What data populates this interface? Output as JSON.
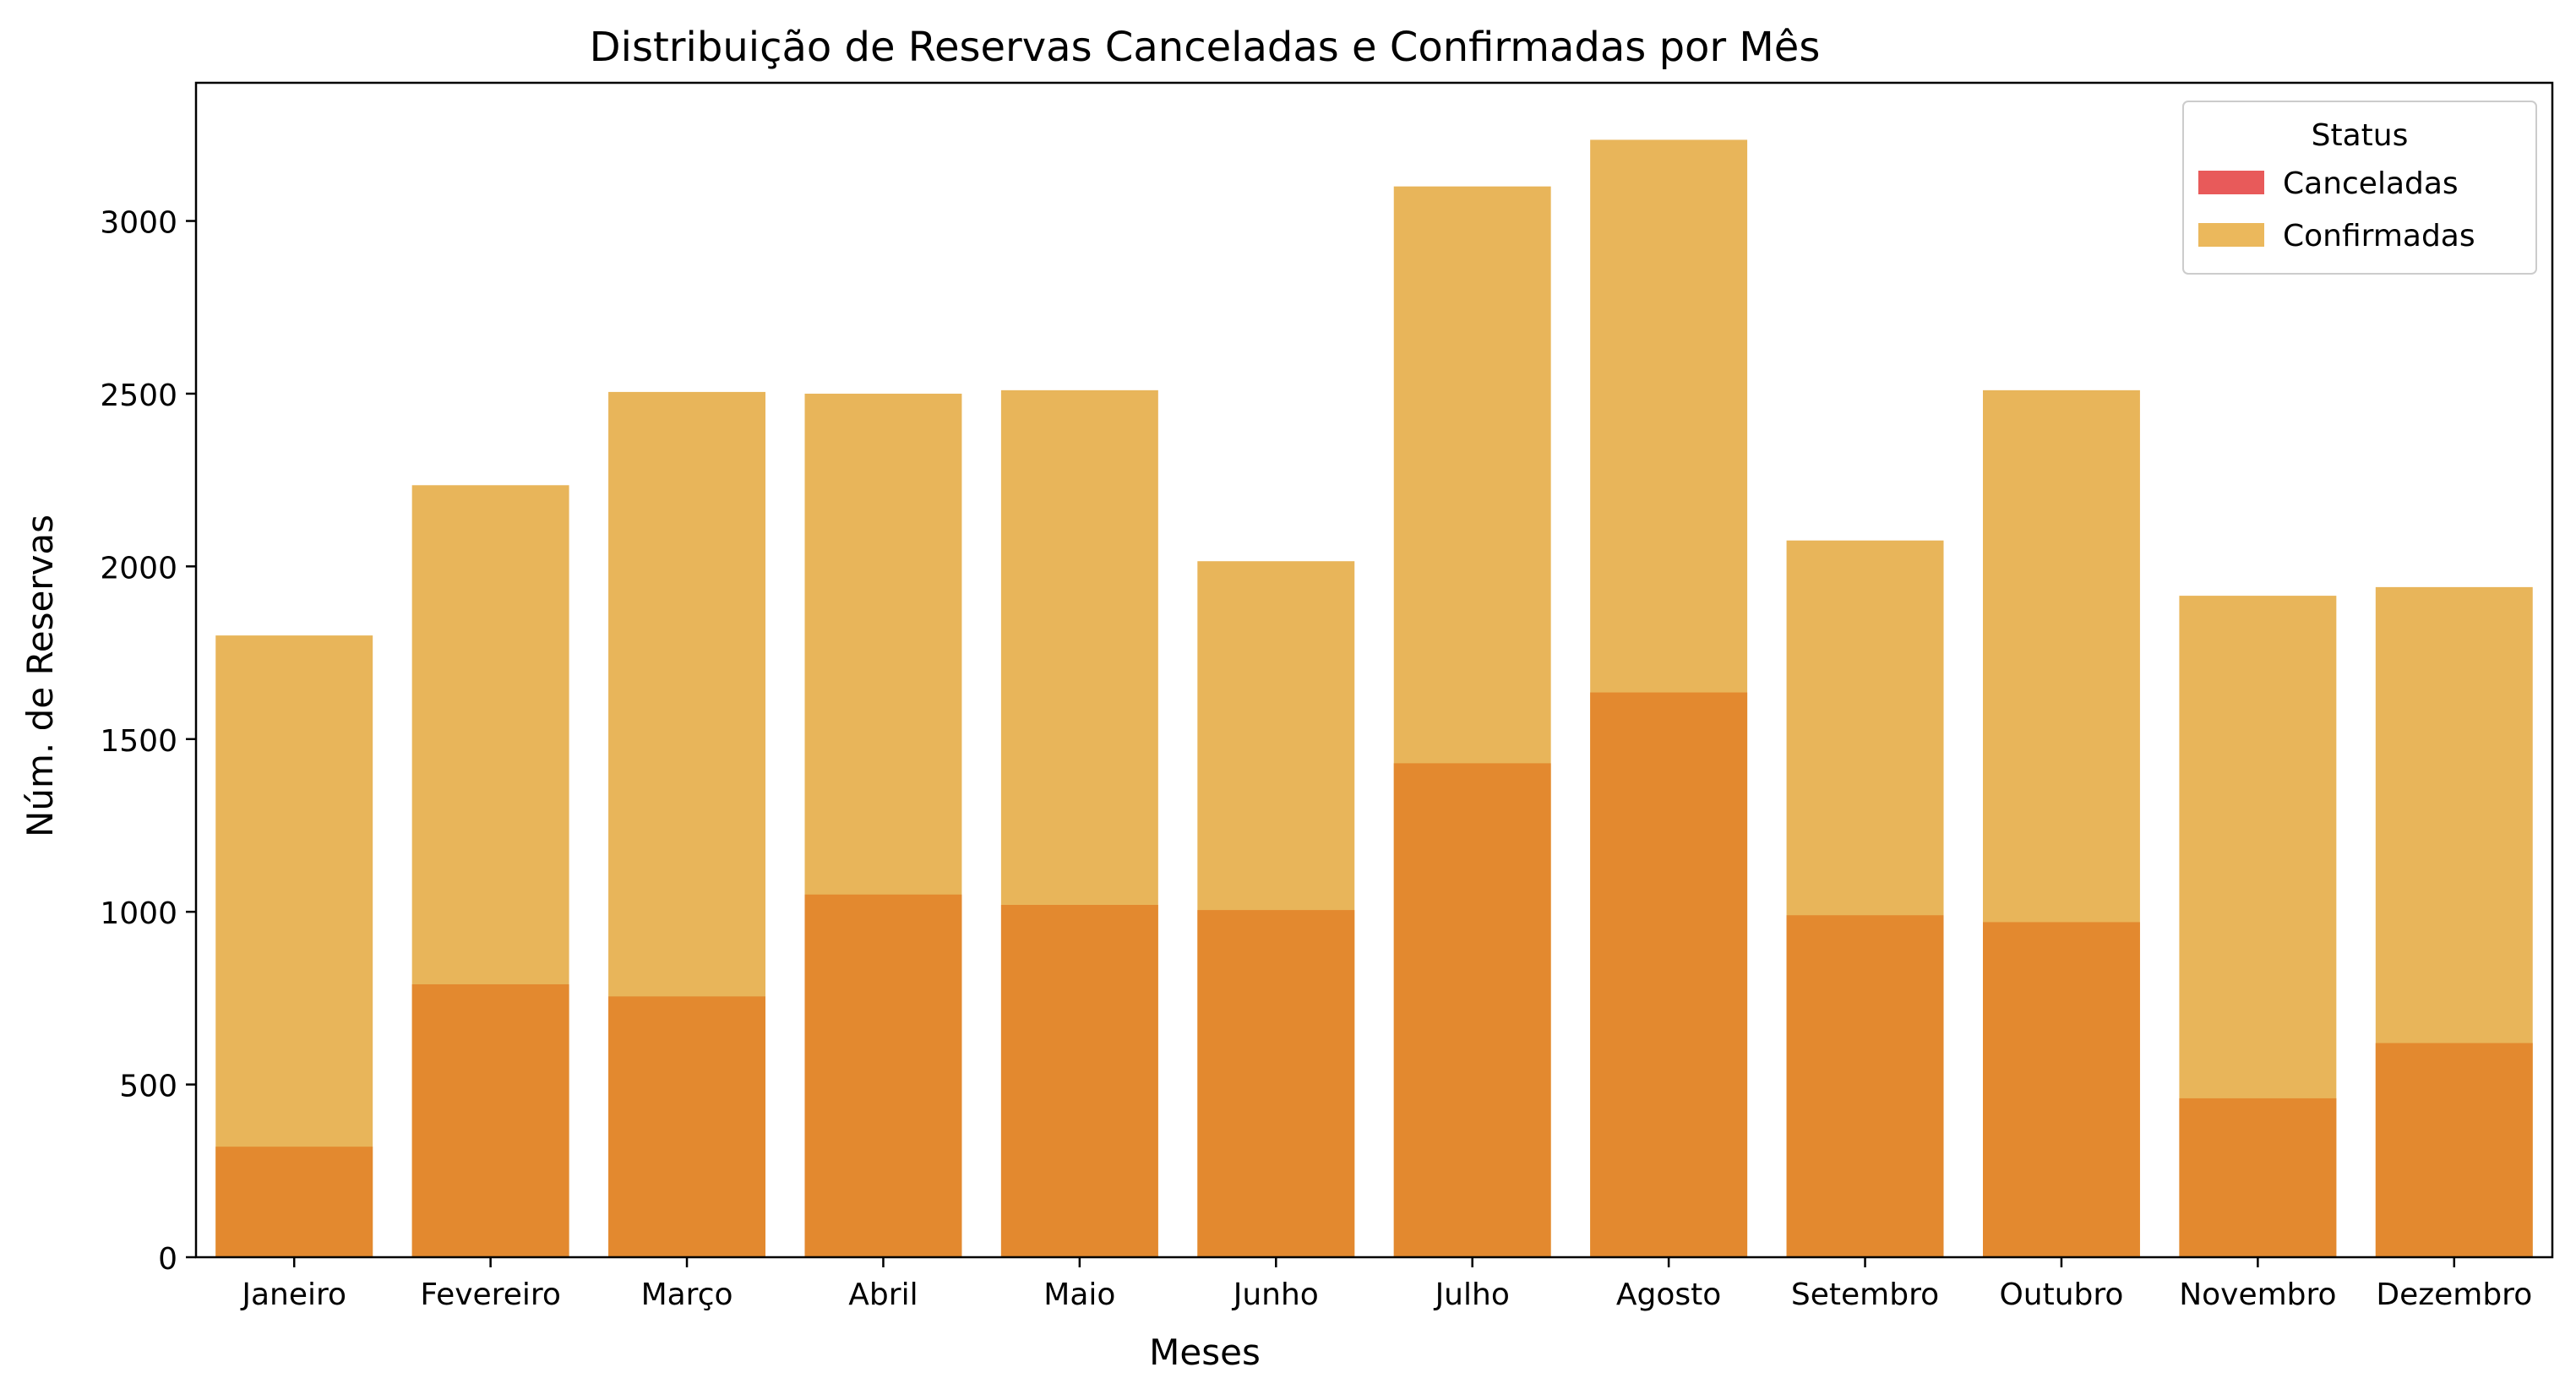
{
  "chart_data": {
    "type": "bar",
    "title": "Distribuição de Reservas Canceladas e Confirmadas por Mês",
    "xlabel": "Meses",
    "ylabel": "Núm. de Reservas",
    "categories": [
      "Janeiro",
      "Fevereiro",
      "Março",
      "Abril",
      "Maio",
      "Junho",
      "Julho",
      "Agosto",
      "Setembro",
      "Outubro",
      "Novembro",
      "Dezembro"
    ],
    "series": [
      {
        "name": "Confirmadas",
        "color": "#E8B55A",
        "values": [
          1800,
          2235,
          2505,
          2500,
          2510,
          2015,
          3100,
          3235,
          2075,
          2510,
          1915,
          1940
        ]
      },
      {
        "name": "Canceladas",
        "color": "#E3892F",
        "values": [
          320,
          790,
          755,
          1050,
          1020,
          1005,
          1430,
          1635,
          990,
          970,
          460,
          620
        ]
      }
    ],
    "ylim": [
      0,
      3400
    ],
    "yticks": [
      0,
      500,
      1000,
      1500,
      2000,
      2500,
      3000
    ],
    "grid": false,
    "legend": {
      "title": "Status",
      "placement": "top-right",
      "entries": [
        {
          "label": "Canceladas",
          "color": "#E85A5A"
        },
        {
          "label": "Confirmadas",
          "color": "#EBB85C"
        }
      ]
    }
  }
}
